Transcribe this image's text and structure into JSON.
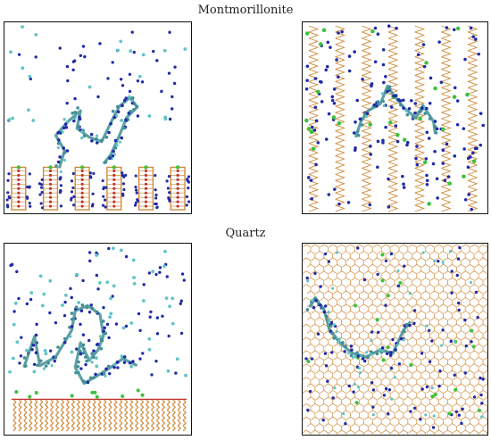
{
  "figure": {
    "section_top_title": "Montmorillonite",
    "section_bottom_title": "Quartz",
    "colors": {
      "frame": "#111111",
      "ion_dark_blue": "#1f2aa8",
      "ion_cyan": "#5fc4c6",
      "ion_green": "#3cc23c",
      "clay_orange": "#d08a3a",
      "clay_red": "#c0342e",
      "polymer_teal": "#3f8f95"
    },
    "panels": [
      {
        "id": "montmorillonite-side-view",
        "surface": "montmorillonite",
        "view": "side"
      },
      {
        "id": "montmorillonite-top-view",
        "surface": "montmorillonite",
        "view": "top"
      },
      {
        "id": "quartz-side-view",
        "surface": "quartz",
        "view": "side"
      },
      {
        "id": "quartz-top-view",
        "surface": "quartz",
        "view": "top"
      }
    ]
  }
}
